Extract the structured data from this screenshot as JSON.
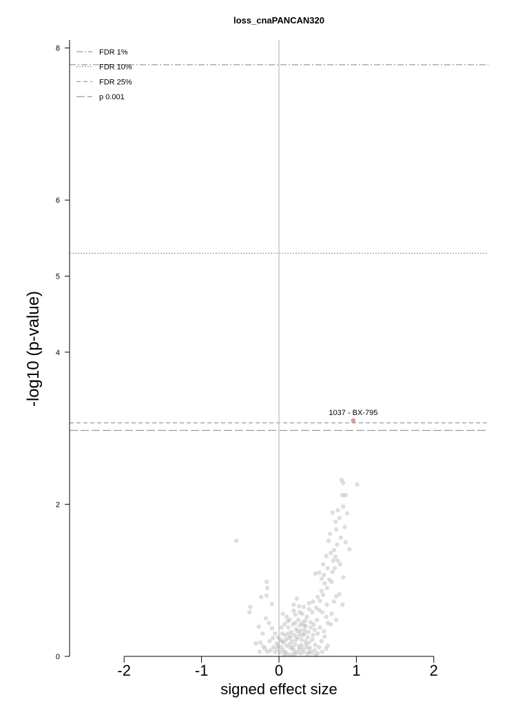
{
  "chart_data": {
    "type": "scatter",
    "title": "loss_cnaPANCAN320",
    "xlabel": "signed effect size",
    "ylabel": "-log10 (p-value)",
    "xlim": [
      -2.7,
      2.7
    ],
    "ylim": [
      0,
      8.1
    ],
    "x_ticks": [
      -2,
      -1,
      0,
      1,
      2
    ],
    "x_tick_labels": [
      "-2",
      "-1",
      "0",
      "1",
      "2"
    ],
    "y_ticks": [
      0,
      2,
      4,
      5,
      6,
      8
    ],
    "y_tick_labels": [
      "0",
      "2",
      "4",
      "5",
      "6",
      "8"
    ],
    "grid": false,
    "legend_position": "top-left",
    "thresholds": [
      {
        "name": "FDR 1%",
        "y": 7.78,
        "style": "dashdot"
      },
      {
        "name": "FDR 10%",
        "y": 5.3,
        "style": "dotted"
      },
      {
        "name": "FDR 25%",
        "y": 3.07,
        "style": "dashed"
      },
      {
        "name": "p 0.001",
        "y": 2.97,
        "style": "longdash"
      }
    ],
    "highlighted_points": [
      {
        "label": "1037 - BX-795",
        "x": 0.96,
        "y": 3.1,
        "color": "#f08080"
      }
    ],
    "point_color": "#a9a9a9",
    "points": [
      [
        -0.55,
        1.52
      ],
      [
        1.01,
        2.26
      ],
      [
        0.81,
        2.32
      ],
      [
        0.83,
        2.28
      ],
      [
        0.86,
        2.12
      ],
      [
        0.82,
        2.12
      ],
      [
        0.83,
        1.97
      ],
      [
        0.76,
        1.92
      ],
      [
        0.78,
        1.82
      ],
      [
        0.69,
        1.89
      ],
      [
        0.73,
        1.77
      ],
      [
        0.74,
        1.67
      ],
      [
        0.66,
        1.61
      ],
      [
        0.64,
        1.52
      ],
      [
        0.88,
        1.88
      ],
      [
        0.85,
        1.7
      ],
      [
        0.8,
        1.56
      ],
      [
        0.86,
        1.5
      ],
      [
        0.91,
        1.41
      ],
      [
        0.75,
        1.47
      ],
      [
        0.71,
        1.4
      ],
      [
        0.67,
        1.36
      ],
      [
        0.73,
        1.31
      ],
      [
        0.76,
        1.26
      ],
      [
        0.79,
        1.21
      ],
      [
        0.72,
        1.16
      ],
      [
        0.69,
        1.11
      ],
      [
        0.61,
        1.32
      ],
      [
        0.57,
        1.21
      ],
      [
        0.52,
        1.1
      ],
      [
        0.47,
        1.09
      ],
      [
        0.55,
        1.02
      ],
      [
        0.59,
        0.96
      ],
      [
        0.62,
        0.9
      ],
      [
        0.55,
        0.86
      ],
      [
        0.57,
        0.81
      ],
      [
        0.5,
        0.78
      ],
      [
        0.53,
        0.73
      ],
      [
        0.44,
        0.72
      ],
      [
        0.39,
        0.7
      ],
      [
        0.48,
        0.64
      ],
      [
        0.52,
        0.61
      ],
      [
        0.56,
        0.58
      ],
      [
        0.61,
        0.52
      ],
      [
        0.63,
        0.44
      ],
      [
        0.67,
        0.42
      ],
      [
        0.74,
        0.48
      ],
      [
        0.82,
        0.68
      ],
      [
        0.74,
        0.79
      ],
      [
        0.83,
        1.04
      ],
      [
        0.65,
        1.01
      ],
      [
        0.39,
        0.62
      ],
      [
        0.32,
        0.65
      ],
      [
        0.27,
        0.58
      ],
      [
        0.21,
        0.55
      ],
      [
        0.25,
        0.48
      ],
      [
        0.3,
        0.44
      ],
      [
        0.35,
        0.4
      ],
      [
        0.41,
        0.38
      ],
      [
        0.46,
        0.35
      ],
      [
        0.5,
        0.3
      ],
      [
        0.38,
        0.32
      ],
      [
        0.33,
        0.3
      ],
      [
        0.28,
        0.34
      ],
      [
        0.22,
        0.36
      ],
      [
        0.18,
        0.42
      ],
      [
        0.14,
        0.48
      ],
      [
        0.1,
        0.52
      ],
      [
        0.05,
        0.56
      ],
      [
        0.07,
        0.42
      ],
      [
        0.12,
        0.38
      ],
      [
        0.16,
        0.32
      ],
      [
        0.2,
        0.28
      ],
      [
        0.24,
        0.25
      ],
      [
        0.29,
        0.22
      ],
      [
        0.34,
        0.2
      ],
      [
        0.39,
        0.18
      ],
      [
        0.43,
        0.22
      ],
      [
        0.47,
        0.15
      ],
      [
        0.52,
        0.12
      ],
      [
        0.36,
        0.12
      ],
      [
        0.31,
        0.1
      ],
      [
        0.26,
        0.13
      ],
      [
        0.21,
        0.16
      ],
      [
        0.17,
        0.2
      ],
      [
        0.13,
        0.24
      ],
      [
        0.08,
        0.28
      ],
      [
        0.04,
        0.3
      ],
      [
        0.02,
        0.22
      ],
      [
        0.06,
        0.18
      ],
      [
        0.1,
        0.14
      ],
      [
        0.15,
        0.11
      ],
      [
        0.19,
        0.08
      ],
      [
        0.23,
        0.05
      ],
      [
        0.28,
        0.04
      ],
      [
        0.32,
        0.06
      ],
      [
        0.37,
        0.03
      ],
      [
        0.42,
        0.05
      ],
      [
        0.46,
        0.08
      ],
      [
        0.5,
        0.04
      ],
      [
        0.55,
        0.2
      ],
      [
        0.59,
        0.26
      ],
      [
        0.63,
        0.14
      ],
      [
        0.44,
        0.28
      ],
      [
        0.41,
        0.45
      ],
      [
        0.36,
        0.52
      ],
      [
        0.3,
        0.56
      ],
      [
        0.26,
        0.66
      ],
      [
        0.19,
        0.68
      ],
      [
        0.23,
        0.76
      ],
      [
        -0.17,
        0.5
      ],
      [
        -0.13,
        0.44
      ],
      [
        -0.09,
        0.37
      ],
      [
        -0.05,
        0.3
      ],
      [
        -0.01,
        0.25
      ],
      [
        -0.03,
        0.17
      ],
      [
        -0.07,
        0.12
      ],
      [
        -0.11,
        0.08
      ],
      [
        -0.15,
        0.06
      ],
      [
        -0.2,
        0.13
      ],
      [
        -0.24,
        0.18
      ],
      [
        -0.21,
        0.3
      ],
      [
        -0.26,
        0.39
      ],
      [
        -0.38,
        0.58
      ],
      [
        -0.37,
        0.65
      ],
      [
        -0.16,
        0.98
      ],
      [
        -0.15,
        0.9
      ],
      [
        -0.16,
        0.8
      ],
      [
        -0.09,
        0.69
      ],
      [
        -0.23,
        0.78
      ],
      [
        -0.25,
        0.06
      ],
      [
        -0.3,
        0.17
      ],
      [
        -0.05,
        0.06
      ],
      [
        -0.02,
        0.1
      ],
      [
        0.01,
        0.05
      ],
      [
        0.03,
        0.12
      ],
      [
        0.05,
        0.08
      ],
      [
        0.08,
        0.06
      ],
      [
        0.11,
        0.03
      ],
      [
        0.14,
        0.16
      ],
      [
        0.09,
        0.22
      ],
      [
        0.16,
        0.02
      ],
      [
        0.27,
        0.29
      ],
      [
        0.33,
        0.35
      ],
      [
        0.37,
        0.25
      ],
      [
        0.26,
        0.09
      ],
      [
        0.18,
        0.12
      ],
      [
        0.12,
        0.3
      ],
      [
        0.21,
        0.44
      ],
      [
        0.27,
        0.41
      ],
      [
        0.31,
        0.28
      ],
      [
        0.35,
        0.16
      ],
      [
        0.4,
        0.11
      ],
      [
        0.45,
        0.42
      ],
      [
        0.49,
        0.48
      ],
      [
        0.53,
        0.38
      ],
      [
        0.58,
        0.33
      ],
      [
        0.62,
        0.68
      ],
      [
        0.68,
        0.56
      ],
      [
        0.71,
        0.72
      ],
      [
        0.78,
        0.82
      ],
      [
        0.68,
        0.98
      ],
      [
        0.58,
        1.07
      ],
      [
        0.63,
        1.16
      ],
      [
        0.7,
        1.26
      ],
      [
        -0.01,
        0.14
      ],
      [
        0.03,
        0.38
      ],
      [
        0.07,
        0.02
      ],
      [
        0.15,
        0.26
      ],
      [
        0.2,
        0.03
      ],
      [
        0.24,
        0.33
      ],
      [
        0.29,
        0.15
      ],
      [
        0.34,
        0.47
      ],
      [
        0.43,
        0.58
      ],
      [
        0.47,
        0.02
      ],
      [
        0.56,
        0.06
      ],
      [
        0.61,
        0.1
      ],
      [
        0.19,
        0.6
      ],
      [
        0.11,
        0.46
      ],
      [
        0.04,
        0.2
      ],
      [
        -0.08,
        0.24
      ],
      [
        -0.12,
        0.2
      ],
      [
        -0.18,
        0.1
      ],
      [
        0.22,
        0.22
      ],
      [
        0.32,
        0.41
      ],
      [
        0.39,
        0.06
      ]
    ]
  }
}
